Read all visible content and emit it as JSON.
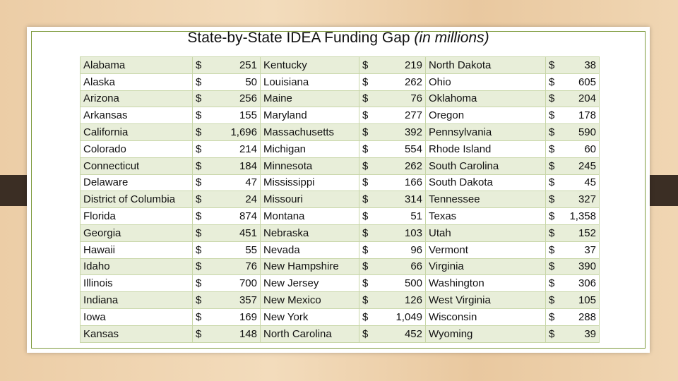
{
  "title": {
    "main": "State-by-State IDEA Funding Gap",
    "note": "(in millions)"
  },
  "table": {
    "rows": [
      [
        "Alabama",
        "$",
        "251",
        "Kentucky",
        "$",
        "219",
        "North Dakota",
        "$",
        "38"
      ],
      [
        "Alaska",
        "$",
        "50",
        "Louisiana",
        "$",
        "262",
        "Ohio",
        "$",
        "605"
      ],
      [
        "Arizona",
        "$",
        "256",
        "Maine",
        "$",
        "76",
        "Oklahoma",
        "$",
        "204"
      ],
      [
        "Arkansas",
        "$",
        "155",
        "Maryland",
        "$",
        "277",
        "Oregon",
        "$",
        "178"
      ],
      [
        "California",
        "$",
        "1,696",
        "Massachusetts",
        "$",
        "392",
        "Pennsylvania",
        "$",
        "590"
      ],
      [
        "Colorado",
        "$",
        "214",
        "Michigan",
        "$",
        "554",
        "Rhode Island",
        "$",
        "60"
      ],
      [
        "Connecticut",
        "$",
        "184",
        "Minnesota",
        "$",
        "262",
        "South Carolina",
        "$",
        "245"
      ],
      [
        "Delaware",
        "$",
        "47",
        "Mississippi",
        "$",
        "166",
        "South Dakota",
        "$",
        "45"
      ],
      [
        "District of Columbia",
        "$",
        "24",
        "Missouri",
        "$",
        "314",
        "Tennessee",
        "$",
        "327"
      ],
      [
        "Florida",
        "$",
        "874",
        "Montana",
        "$",
        "51",
        "Texas",
        "$",
        "1,358"
      ],
      [
        "Georgia",
        "$",
        "451",
        "Nebraska",
        "$",
        "103",
        "Utah",
        "$",
        "152"
      ],
      [
        "Hawaii",
        "$",
        "55",
        "Nevada",
        "$",
        "96",
        "Vermont",
        "$",
        "37"
      ],
      [
        "Idaho",
        "$",
        "76",
        "New Hampshire",
        "$",
        "66",
        "Virginia",
        "$",
        "390"
      ],
      [
        "Illinois",
        "$",
        "700",
        "New Jersey",
        "$",
        "500",
        "Washington",
        "$",
        "306"
      ],
      [
        "Indiana",
        "$",
        "357",
        "New Mexico",
        "$",
        "126",
        "West Virginia",
        "$",
        "105"
      ],
      [
        "Iowa",
        "$",
        "169",
        "New York",
        "$",
        "1,049",
        "Wisconsin",
        "$",
        "288"
      ],
      [
        "Kansas",
        "$",
        "148",
        "North Carolina",
        "$",
        "452",
        "Wyoming",
        "$",
        "39"
      ]
    ]
  }
}
